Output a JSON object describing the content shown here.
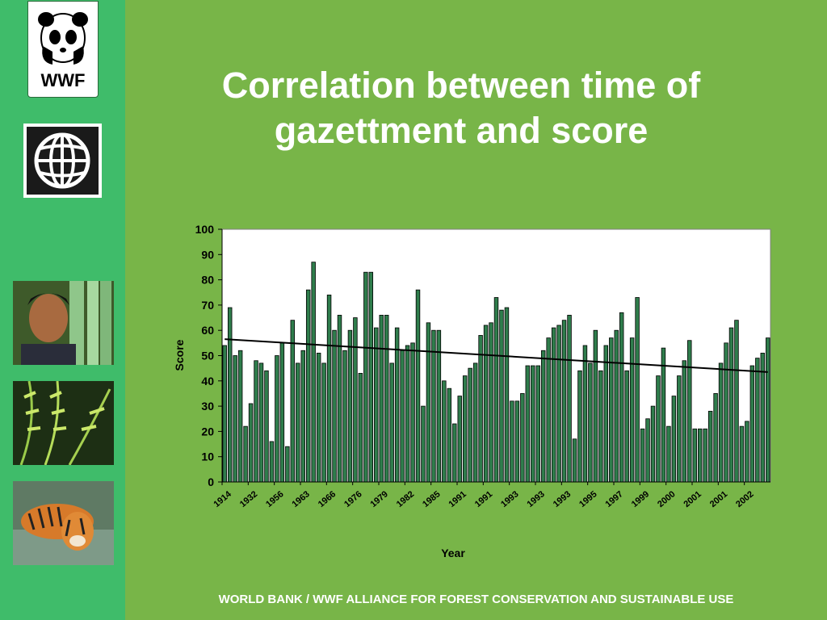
{
  "title_line1": "Correlation between time of",
  "title_line2": "gazettment and score",
  "footer": "WORLD BANK / WWF ALLIANCE FOR FOREST CONSERVATION AND SUSTAINABLE USE",
  "wwf_logo_text": "WWF",
  "colors": {
    "background": "#78b548",
    "sidebar": "#3fbc6a",
    "bar": "#2f7d4c",
    "bar_stroke": "#000000"
  },
  "chart_data": {
    "type": "bar",
    "xlabel": "Year",
    "ylabel": "Score",
    "ylim": [
      0,
      100
    ],
    "yticks": [
      0,
      10,
      20,
      30,
      40,
      50,
      60,
      70,
      80,
      90,
      100
    ],
    "grid": false,
    "legend": "none",
    "x_tick_labels": [
      "1914",
      "1932",
      "1956",
      "1963",
      "1966",
      "1976",
      "1979",
      "1982",
      "1985",
      "1991",
      "1991",
      "1993",
      "1993",
      "1993",
      "1995",
      "1997",
      "1999",
      "2000",
      "2001",
      "2001",
      "2002"
    ],
    "values": [
      54,
      69,
      50,
      52,
      22,
      31,
      48,
      47,
      44,
      16,
      50,
      55,
      14,
      64,
      47,
      52,
      76,
      87,
      51,
      47,
      74,
      60,
      66,
      52,
      60,
      65,
      43,
      83,
      83,
      61,
      66,
      66,
      47,
      61,
      52,
      54,
      55,
      76,
      30,
      63,
      60,
      60,
      40,
      37,
      23,
      34,
      42,
      45,
      47,
      58,
      62,
      63,
      73,
      68,
      69,
      32,
      32,
      35,
      46,
      46,
      46,
      52,
      57,
      61,
      62,
      64,
      66,
      17,
      44,
      54,
      47,
      60,
      44,
      54,
      57,
      60,
      67,
      44,
      57,
      73,
      21,
      25,
      30,
      42,
      53,
      22,
      34,
      42,
      48,
      56,
      21,
      21,
      21,
      28,
      35,
      47,
      55,
      61,
      64,
      22,
      24,
      46,
      49,
      51,
      57
    ],
    "trendline": {
      "start": 56.5,
      "end": 43.5
    }
  }
}
